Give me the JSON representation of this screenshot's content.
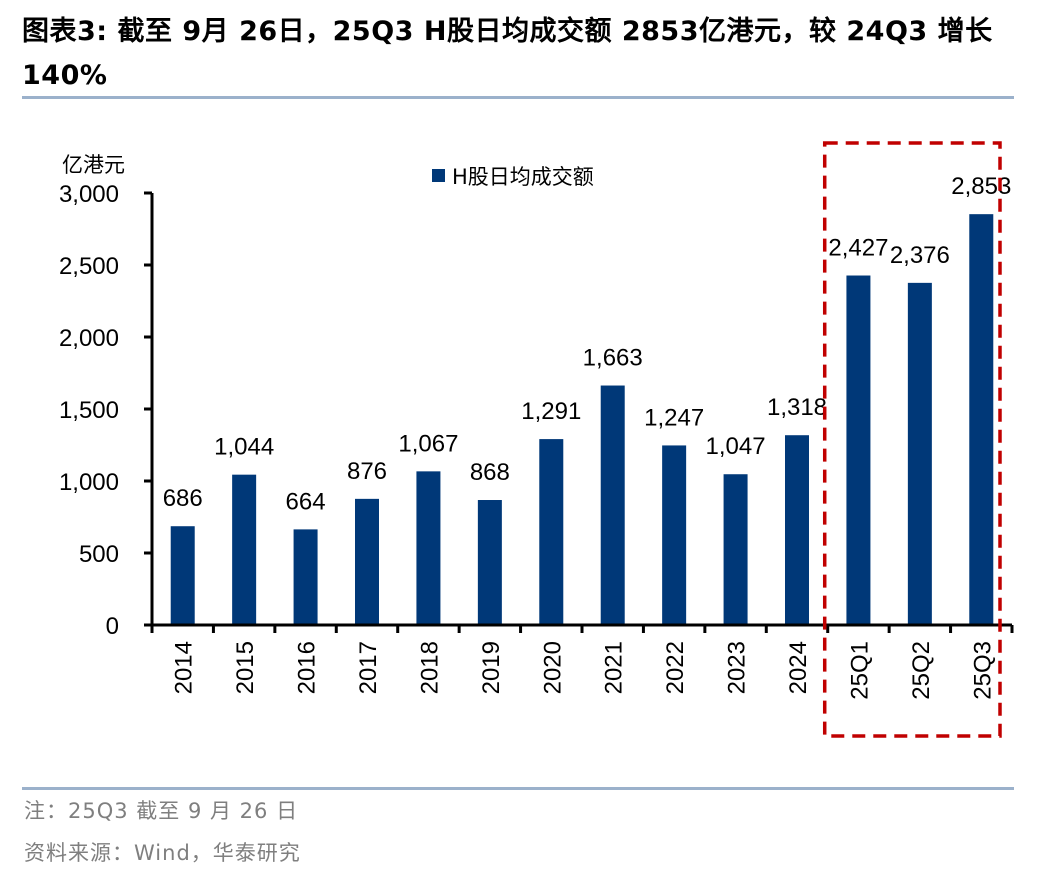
{
  "header": {
    "title": "图表3:  截至 9月 26日，25Q3 H股日均成交额 2853亿港元，较 24Q3 增长 140%"
  },
  "footer": {
    "note": "注：25Q3 截至 9 月 26 日",
    "source": "资料来源：Wind，华泰研究"
  },
  "colors": {
    "bar": "#003878",
    "highlight_box": "#c00000",
    "rule": "#9bb1cb"
  },
  "chart_data": {
    "type": "bar",
    "title": "图表3:  截至 9月 26日，25Q3 H股日均成交额 2853亿港元，较 24Q3 增长 140%",
    "categories": [
      "2014",
      "2015",
      "2016",
      "2017",
      "2018",
      "2019",
      "2020",
      "2021",
      "2022",
      "2023",
      "2024",
      "25Q1",
      "25Q2",
      "25Q3"
    ],
    "series": [
      {
        "name": "H股日均成交额",
        "values": [
          686,
          1044,
          664,
          876,
          1067,
          868,
          1291,
          1663,
          1247,
          1047,
          1318,
          2427,
          2376,
          2853
        ]
      }
    ],
    "data_labels": [
      "686",
      "1,044",
      "664",
      "876",
      "1,067",
      "868",
      "1,291",
      "1,663",
      "1,247",
      "1,047",
      "1,318",
      "2,427",
      "2,376",
      "2,853"
    ],
    "xlabel": "",
    "ylabel": "亿港元",
    "ylim": [
      0,
      3000
    ],
    "yticks": [
      0,
      500,
      1000,
      1500,
      2000,
      2500,
      3000
    ],
    "ytick_labels": [
      "0",
      "500",
      "1,000",
      "1,500",
      "2,000",
      "2,500",
      "3,000"
    ],
    "legend": {
      "entries": [
        "H股日均成交额"
      ],
      "placement": "top-center"
    },
    "highlight": {
      "categories": [
        "25Q1",
        "25Q2",
        "25Q3"
      ],
      "style": "red dashed box"
    },
    "grid": false
  }
}
